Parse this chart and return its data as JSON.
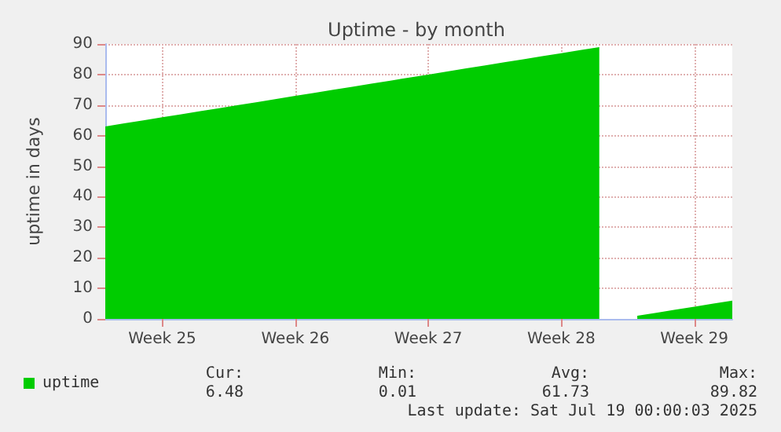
{
  "chart_data": {
    "type": "area",
    "title": "Uptime - by month",
    "ylabel": "uptime in days",
    "categories": [
      null,
      null,
      null,
      "Week 25",
      null,
      null,
      null,
      null,
      null,
      null,
      "Week 26",
      null,
      null,
      null,
      null,
      null,
      null,
      "Week 27",
      null,
      null,
      null,
      null,
      null,
      null,
      "Week 28",
      null,
      null,
      null,
      null,
      null,
      null,
      "Week 29",
      null,
      null
    ],
    "ylim": [
      0,
      90
    ],
    "yticks": [
      0,
      10,
      20,
      30,
      40,
      50,
      60,
      70,
      80,
      90
    ],
    "grid": true,
    "legend": "bottom left",
    "series": [
      {
        "name": "uptime",
        "color": "#00cc00",
        "values": [
          63,
          64,
          65,
          66,
          67,
          68,
          69,
          70,
          71,
          72,
          73,
          74,
          75,
          76,
          77,
          78,
          79,
          80,
          81,
          82,
          83,
          84,
          85,
          86,
          87,
          88,
          89,
          null,
          1,
          2,
          3,
          4,
          5,
          6
        ]
      }
    ],
    "annotations": [
      "Cur:",
      "6.48",
      "Min:",
      "0.01",
      "Avg:",
      "61.73",
      "Max:",
      "89.82",
      "Last update: Sat Jul 19 00:00:03 2025"
    ]
  }
}
